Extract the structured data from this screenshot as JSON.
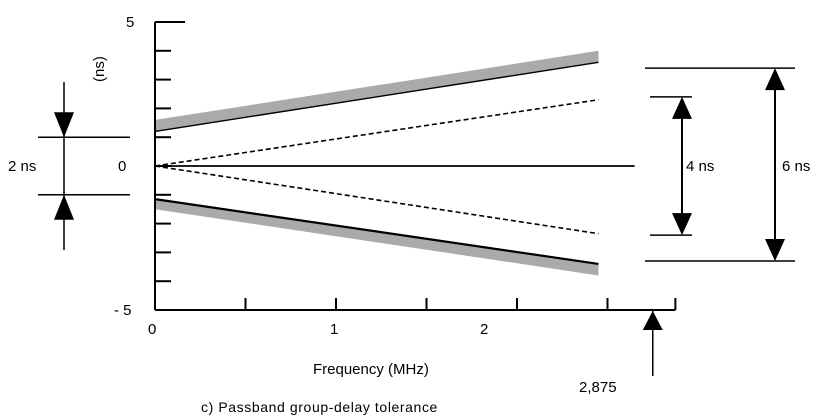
{
  "chart_data": {
    "type": "line",
    "title": "",
    "caption": "c) Passband group-delay  tolerance",
    "xlabel": "Frequency (MHz)",
    "ylabel": "(ns)",
    "xlim": [
      0,
      2.875
    ],
    "ylim": [
      -5,
      5
    ],
    "x_ticks": [
      0,
      1,
      2
    ],
    "x_tick_labels": [
      "0",
      "1",
      "2"
    ],
    "y_tick_labels": [
      "5",
      "0",
      "- 5"
    ],
    "x_end_label": "2,875",
    "grid": false,
    "series": [
      {
        "style": "solid-thin",
        "x": [
          0,
          2.45
        ],
        "y": [
          1.2,
          3.6
        ]
      },
      {
        "style": "dashed",
        "x": [
          0,
          2.45
        ],
        "y": [
          0,
          2.3
        ]
      },
      {
        "style": "solid",
        "x": [
          0,
          2.65
        ],
        "y": [
          0,
          0
        ]
      },
      {
        "style": "dashed",
        "x": [
          0,
          2.45
        ],
        "y": [
          0,
          -2.35
        ]
      },
      {
        "style": "solid-thick",
        "x": [
          0,
          2.45
        ],
        "y": [
          -1.15,
          -3.4
        ]
      }
    ],
    "tolerance_bands": [
      {
        "color": "#aaaaaa",
        "x": [
          0,
          2.45
        ],
        "y_lower": [
          1.2,
          3.6
        ],
        "y_upper": [
          1.6,
          4.0
        ]
      },
      {
        "color": "#aaaaaa",
        "x": [
          0,
          2.45
        ],
        "y_lower": [
          -1.5,
          -3.8
        ],
        "y_upper": [
          -1.15,
          -3.4
        ]
      }
    ],
    "annotations": [
      {
        "text": "2 ns",
        "from": -1,
        "to": 1,
        "side": "left"
      },
      {
        "text": "4 ns",
        "from": -2.4,
        "to": 2.4,
        "side": "right"
      },
      {
        "text": "6 ns",
        "from": -3.3,
        "to": 3.4,
        "side": "right"
      }
    ]
  }
}
